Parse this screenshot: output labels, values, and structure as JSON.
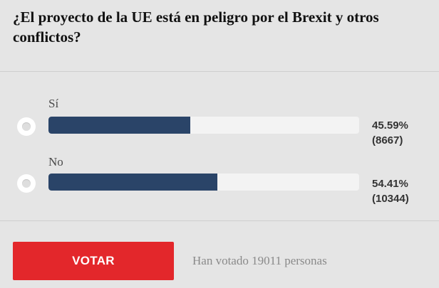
{
  "poll": {
    "question": "¿El proyecto de la UE está en peligro por el Brexit y otros conflictos?",
    "options": [
      {
        "label": "Sí",
        "percent_text": "45.59%",
        "count_text": "(8667)",
        "percent": 45.59,
        "votes": 8667
      },
      {
        "label": "No",
        "percent_text": "54.41%",
        "count_text": "(10344)",
        "percent": 54.41,
        "votes": 10344
      }
    ],
    "vote_button_label": "VOTAR",
    "total_votes_text": "Han votado 19011 personas"
  },
  "colors": {
    "background": "#e5e5e5",
    "bar_fill": "#2a4468",
    "bar_track": "#f3f3f3",
    "button": "#e3272b"
  }
}
